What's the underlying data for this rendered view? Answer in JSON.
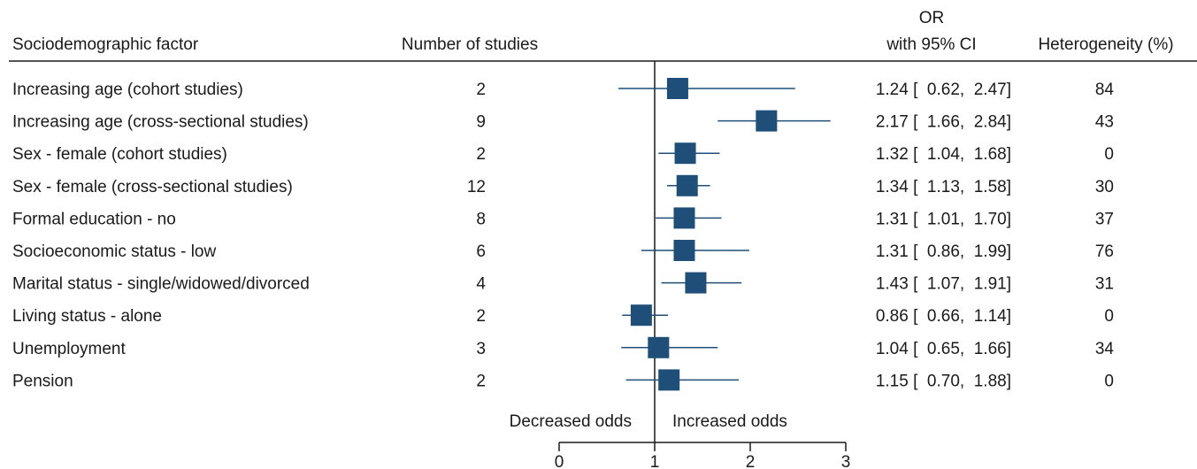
{
  "chart_data": {
    "type": "forest",
    "headers": {
      "factor": "Sociodemographic factor",
      "studies": "Number of studies",
      "or_line1": "OR",
      "or_line2": "with 95% CI",
      "heterogeneity": "Heterogeneity (%)"
    },
    "rows": [
      {
        "factor": "Increasing age (cohort studies)",
        "studies": "2",
        "or": 1.24,
        "lo": 0.62,
        "hi": 2.47,
        "ci_text": "1.24 [  0.62,  2.47]",
        "het": "84"
      },
      {
        "factor": "Increasing age (cross-sectional studies)",
        "studies": "9",
        "or": 2.17,
        "lo": 1.66,
        "hi": 2.84,
        "ci_text": "2.17 [  1.66,  2.84]",
        "het": "43"
      },
      {
        "factor": "Sex - female (cohort studies)",
        "studies": "2",
        "or": 1.32,
        "lo": 1.04,
        "hi": 1.68,
        "ci_text": "1.32 [  1.04,  1.68]",
        "het": "0"
      },
      {
        "factor": "Sex - female (cross-sectional studies)",
        "studies": "12",
        "or": 1.34,
        "lo": 1.13,
        "hi": 1.58,
        "ci_text": "1.34 [  1.13,  1.58]",
        "het": "30"
      },
      {
        "factor": "Formal education - no",
        "studies": "8",
        "or": 1.31,
        "lo": 1.01,
        "hi": 1.7,
        "ci_text": "1.31 [  1.01,  1.70]",
        "het": "37"
      },
      {
        "factor": "Socioeconomic status - low",
        "studies": "6",
        "or": 1.31,
        "lo": 0.86,
        "hi": 1.99,
        "ci_text": "1.31 [  0.86,  1.99]",
        "het": "76"
      },
      {
        "factor": "Marital status - single/widowed/divorced",
        "studies": "4",
        "or": 1.43,
        "lo": 1.07,
        "hi": 1.91,
        "ci_text": "1.43 [  1.07,  1.91]",
        "het": "31"
      },
      {
        "factor": "Living status - alone",
        "studies": "2",
        "or": 0.86,
        "lo": 0.66,
        "hi": 1.14,
        "ci_text": "0.86 [  0.66,  1.14]",
        "het": "0"
      },
      {
        "factor": "Unemployment",
        "studies": "3",
        "or": 1.04,
        "lo": 0.65,
        "hi": 1.66,
        "ci_text": "1.04 [  0.65,  1.66]",
        "het": "34"
      },
      {
        "factor": "Pension",
        "studies": "2",
        "or": 1.15,
        "lo": 0.7,
        "hi": 1.88,
        "ci_text": "1.15 [  0.70,  1.88]",
        "het": "0"
      }
    ],
    "x_axis": {
      "min": 0,
      "max": 3,
      "ticks": [
        "0",
        "1",
        "2",
        "3"
      ],
      "reference": 1
    },
    "annotations": {
      "left": "Decreased odds",
      "right": "Increased odds"
    },
    "colors": {
      "marker": "#1f4e79",
      "line": "#1f4e79",
      "text": "#1a1a1a"
    }
  }
}
